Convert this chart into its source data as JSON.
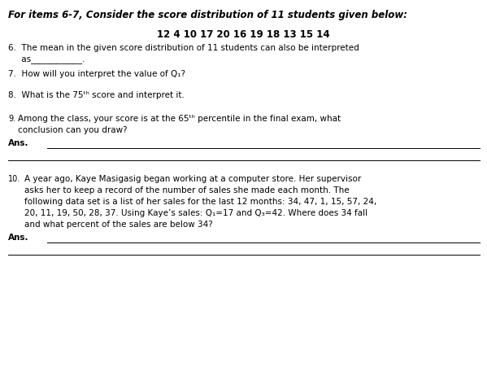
{
  "bg_color": "#ffffff",
  "text_color": "#000000",
  "title": "For items 6-7, Consider the score distribution of 11 students given below:",
  "scores": "12 4 10 17 20 16 19 18 13 15 14",
  "item6": "6.  The mean in the given score distribution of 11 students can also be interpreted",
  "item6b": "     as____________.",
  "item7": "7.  How will you interpret the value of Q₁?",
  "item8": "8.  What is the 75ᵗʰ score and interpret it.",
  "item9_num": "9.",
  "item9": "Among the class, your score is at the 65ᵗʰ percentile in the final exam, what",
  "item9b": "conclusion can you draw?",
  "ans_label": "Ans.",
  "item10_num": "10.",
  "item10": "A year ago, Kaye Masigasig began working at a computer store. Her supervisor",
  "item10b": "asks her to keep a record of the number of sales she made each month. The",
  "item10c": "following data set is a list of her sales for the last 12 months: 34, 47, 1, 15, 57, 24,",
  "item10d": "20, 11, 19, 50, 28, 37. Using Kaye’s sales: Q₁=17 and Q₃=42. Where does 34 fall",
  "item10e": "and what percent of the sales are below 34?",
  "line_color": "#000000",
  "figsize": [
    5.99,
    4.51
  ],
  "dpi": 100
}
